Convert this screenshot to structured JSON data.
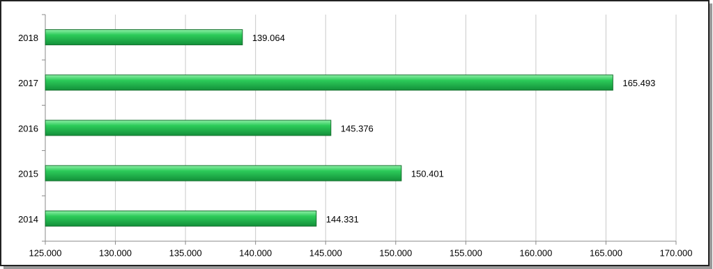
{
  "chart_data": {
    "type": "bar",
    "orientation": "horizontal",
    "categories": [
      "2014",
      "2015",
      "2016",
      "2017",
      "2018"
    ],
    "values": [
      144331,
      150401,
      145376,
      165493,
      139064
    ],
    "value_labels": [
      "144.331",
      "150.401",
      "145.376",
      "165.493",
      "139.064"
    ],
    "color": "#2ccb59",
    "xlim": [
      125000,
      170000
    ],
    "xticks": [
      {
        "value": 125000,
        "label": "125.000"
      },
      {
        "value": 130000,
        "label": "130.000"
      },
      {
        "value": 135000,
        "label": "135.000"
      },
      {
        "value": 140000,
        "label": "140.000"
      },
      {
        "value": 145000,
        "label": "145.000"
      },
      {
        "value": 150000,
        "label": "150.000"
      },
      {
        "value": 155000,
        "label": "155.000"
      },
      {
        "value": 160000,
        "label": "160.000"
      },
      {
        "value": 165000,
        "label": "165.000"
      },
      {
        "value": 170000,
        "label": "170.000"
      }
    ],
    "grid": true
  }
}
